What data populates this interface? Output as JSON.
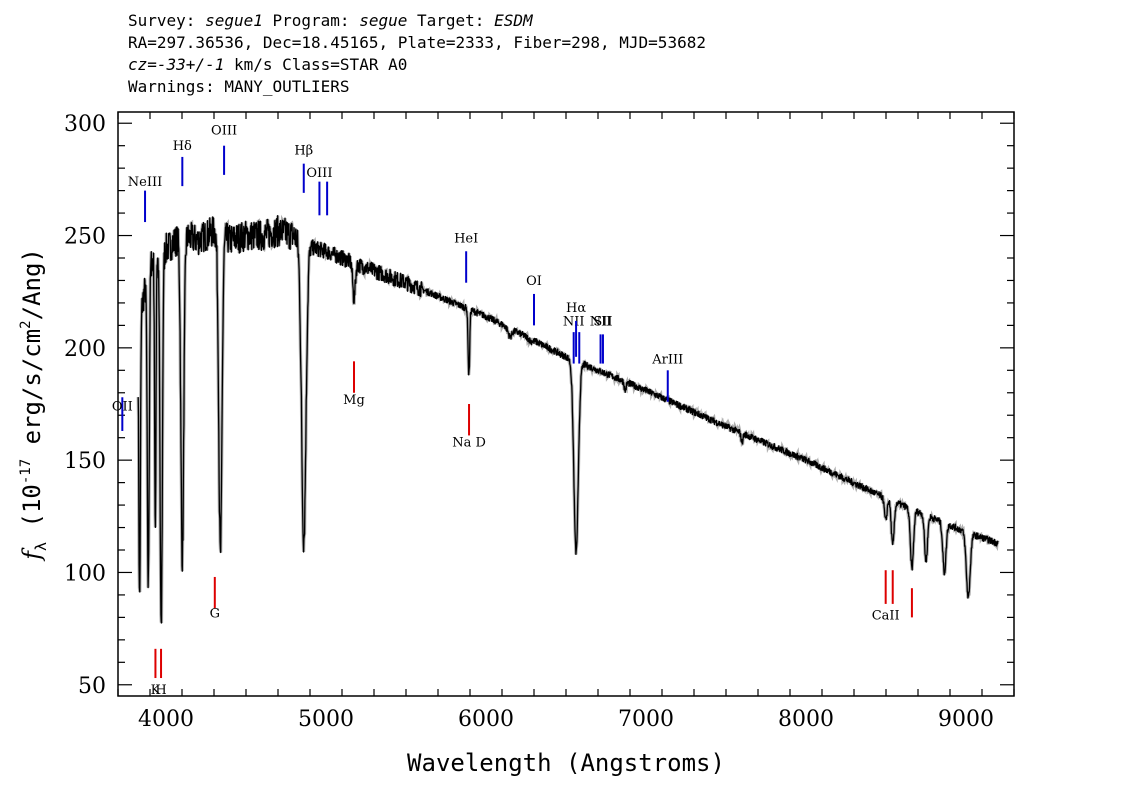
{
  "header": {
    "line1": {
      "survey_label": "Survey: ",
      "survey": "segue1",
      "program_label": " Program: ",
      "program": "segue",
      "target_label": " Target: ",
      "target": "ESDM"
    },
    "line2": "RA=297.36536, Dec=18.45165, Plate=2333, Fiber=298, MJD=53682",
    "line3": {
      "cz": "cz=-33+/-1",
      "rest": " km/s Class=STAR A0"
    },
    "line4": "Warnings: MANY_OUTLIERS"
  },
  "colors": {
    "spectrum": "#000000",
    "error_band": "#b0b0b0",
    "emission": "#0000cc",
    "absorption": "#dd0000"
  },
  "chart_data": {
    "type": "line",
    "title": "",
    "xlabel": "Wavelength (Angstroms)",
    "ylabel": "f_λ (10^-17 erg/s/cm^2/Ang)",
    "ylabel_parts": {
      "f": "f",
      "lambda": "λ",
      "open": " (10",
      "exp1": "-17",
      "mid": " erg/s/cm",
      "exp2": "2",
      "close": "/Ang)"
    },
    "xlim": [
      3700,
      9300
    ],
    "ylim": [
      45,
      305
    ],
    "x_ticks": [
      4000,
      5000,
      6000,
      7000,
      8000,
      9000
    ],
    "x_tick_labels": [
      "4000",
      "5000",
      "6000",
      "7000",
      "8000",
      "9000"
    ],
    "y_ticks": [
      50,
      100,
      150,
      200,
      250,
      300
    ],
    "y_tick_labels": [
      "50",
      "100",
      "150",
      "200",
      "250",
      "300"
    ],
    "continuum": [
      [
        3800,
        200
      ],
      [
        3900,
        238
      ],
      [
        4000,
        244
      ],
      [
        4100,
        250
      ],
      [
        4200,
        248
      ],
      [
        4300,
        252
      ],
      [
        4400,
        248
      ],
      [
        4500,
        250
      ],
      [
        4600,
        250
      ],
      [
        4700,
        252
      ],
      [
        4800,
        250
      ],
      [
        4900,
        245
      ],
      [
        5000,
        243
      ],
      [
        5200,
        237
      ],
      [
        5500,
        229
      ],
      [
        6000,
        214
      ],
      [
        6500,
        196
      ],
      [
        7000,
        181
      ],
      [
        7500,
        165
      ],
      [
        8000,
        150
      ],
      [
        8500,
        133
      ],
      [
        9000,
        118
      ],
      [
        9200,
        113
      ]
    ],
    "absorption_features": [
      [
        3835,
        88,
        5
      ],
      [
        3889,
        94,
        6
      ],
      [
        3933,
        116,
        4
      ],
      [
        3970,
        72,
        7
      ],
      [
        4102,
        106,
        9
      ],
      [
        4340,
        107,
        10
      ],
      [
        4861,
        115,
        14
      ],
      [
        5175,
        222,
        8
      ],
      [
        5893,
        188,
        5
      ],
      [
        6150,
        205,
        12
      ],
      [
        6280,
        203,
        12
      ],
      [
        6563,
        109,
        14
      ],
      [
        6870,
        181,
        6
      ],
      [
        7600,
        158,
        6
      ],
      [
        8498,
        123,
        8
      ],
      [
        8542,
        112,
        9
      ],
      [
        8662,
        102,
        10
      ],
      [
        8750,
        105,
        9
      ],
      [
        8865,
        100,
        10
      ],
      [
        9014,
        89,
        12
      ]
    ],
    "emission_lines": [
      {
        "label": "OII",
        "x": 3727,
        "y1": 163,
        "y2": 178,
        "label_y": 172
      },
      {
        "label": "NeIII",
        "x": 3869,
        "y1": 256,
        "y2": 270,
        "label_y": 272
      },
      {
        "label": "Hδ",
        "x": 4102,
        "y1": 272,
        "y2": 285,
        "label_y": 288
      },
      {
        "label": "OIII",
        "x": 4363,
        "y1": 277,
        "y2": 290,
        "label_y": 295
      },
      {
        "label": "Hβ",
        "x": 4861,
        "y1": 269,
        "y2": 282,
        "label_y": 286
      },
      {
        "label": "OIII",
        "x": 4959,
        "y1": 259,
        "y2": 274,
        "label_y": 276
      },
      {
        "label": "",
        "x": 5007,
        "y1": 259,
        "y2": 274,
        "label_y": 0
      },
      {
        "label": "HeI",
        "x": 5876,
        "y1": 229,
        "y2": 243,
        "label_y": 247
      },
      {
        "label": "OI",
        "x": 6300,
        "y1": 210,
        "y2": 224,
        "label_y": 228
      },
      {
        "label": "NII",
        "x": 6548,
        "y1": 193,
        "y2": 207,
        "label_y": 210
      },
      {
        "label": "Hα",
        "x": 6563,
        "y1": 196,
        "y2": 212,
        "label_y": 216
      },
      {
        "label": "",
        "x": 6583,
        "y1": 193,
        "y2": 207,
        "label_y": 0
      },
      {
        "label": "NII",
        "x": 6716,
        "y1": 193,
        "y2": 206,
        "label_y": 210
      },
      {
        "label": "SII",
        "x": 6731,
        "y1": 193,
        "y2": 206,
        "label_y": 210
      },
      {
        "label": "ArIII",
        "x": 7136,
        "y1": 176,
        "y2": 190,
        "label_y": 193
      }
    ],
    "absorption_lines": [
      {
        "label": "K",
        "x": 3934,
        "y1": 53,
        "y2": 66,
        "label_y": 46
      },
      {
        "label": "H",
        "x": 3969,
        "y1": 53,
        "y2": 66,
        "label_y": 46
      },
      {
        "label": "G",
        "x": 4305,
        "y1": 84,
        "y2": 98,
        "label_y": 80
      },
      {
        "label": "Mg",
        "x": 5175,
        "y1": 180,
        "y2": 194,
        "label_y": 175
      },
      {
        "label": "Na  D",
        "x": 5894,
        "y1": 161,
        "y2": 175,
        "label_y": 156
      },
      {
        "label": "CaII",
        "x": 8498,
        "y1": 86,
        "y2": 101,
        "label_y": 79
      },
      {
        "label": "",
        "x": 8542,
        "y1": 86,
        "y2": 101,
        "label_y": 0
      },
      {
        "label": "",
        "x": 8662,
        "y1": 80,
        "y2": 93,
        "label_y": 0
      }
    ]
  }
}
